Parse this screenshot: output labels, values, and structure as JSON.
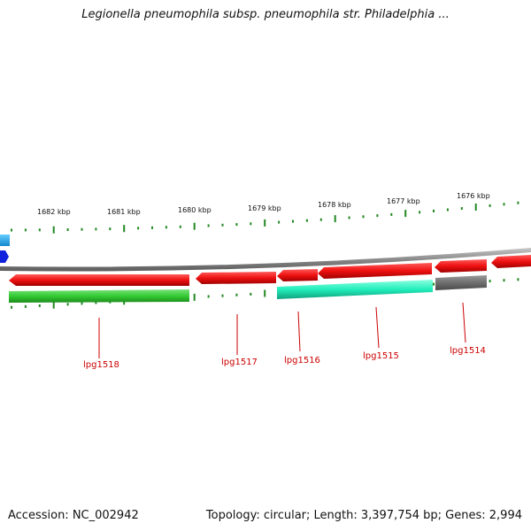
{
  "title": "Legionella pneumophila subsp. pneumophila str. Philadelphia ...",
  "footer": {
    "accession": "Accession: NC_002942",
    "summary": "Topology: circular; Length: 3,397,754 bp; Genes: 2,994"
  },
  "scale_labels": [
    "1682 kbp",
    "1681 kbp",
    "1680 kbp",
    "1679 kbp",
    "1678 kbp",
    "1677 kbp",
    "1676 kbp"
  ],
  "gene_labels": [
    "lpg1518",
    "lpg1517",
    "lpg1516",
    "lpg1515",
    "lpg1514"
  ],
  "colors": {
    "cds": "#ee1111",
    "gene_green": "#33cc33",
    "gene_teal": "#22eebb",
    "gene_gray": "#707070",
    "backbone": "#909090",
    "ticks": "#228822",
    "label": "#cc0000",
    "edge_cyan": "#22aadd",
    "edge_blue": "#1122dd"
  }
}
